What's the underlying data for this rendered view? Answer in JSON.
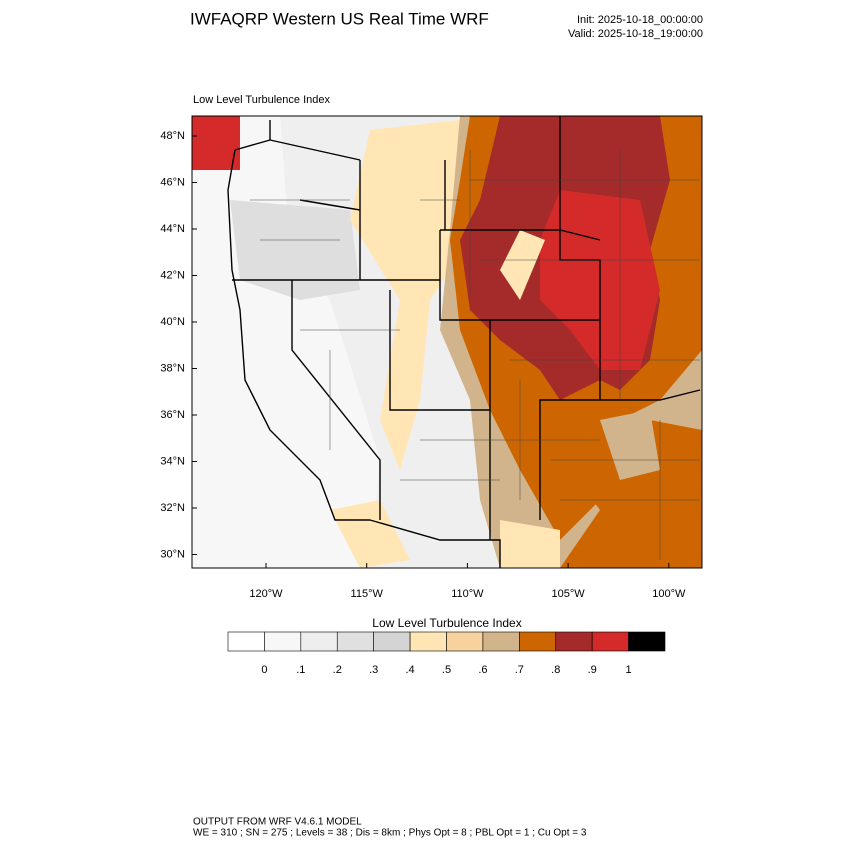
{
  "header": {
    "title": "IWFAQRP Western US Real Time WRF",
    "init": "Init: 2025-10-18_00:00:00",
    "valid": "Valid: 2025-10-18_19:00:00"
  },
  "map": {
    "label": "Low Level Turbulence Index",
    "lat_labels": [
      "48°N",
      "46°N",
      "44°N",
      "42°N",
      "40°N",
      "38°N",
      "36°N",
      "34°N",
      "32°N",
      "30°N"
    ],
    "lon_labels": [
      "120°W",
      "115°W",
      "110°W",
      "105°W",
      "100°W"
    ]
  },
  "colorbar": {
    "title": "Low Level Turbulence Index",
    "colors": [
      "#ffffff",
      "#f7f7f7",
      "#eeeeee",
      "#e0e0e0",
      "#d4d4d4",
      "#ffe6b4",
      "#f7d29e",
      "#d2b48c",
      "#cd6600",
      "#a52a2a",
      "#d42a2a",
      "#000000"
    ],
    "labels": [
      "0",
      ".1",
      ".2",
      ".3",
      ".4",
      ".5",
      ".6",
      ".7",
      ".8",
      ".9",
      "1"
    ]
  },
  "footer": {
    "line1": "OUTPUT FROM WRF V4.6.1 MODEL",
    "line2": "WE = 310 ; SN = 275 ; Levels = 38 ; Dis = 8km ; Phys Opt = 8 ; PBL Opt = 1 ; Cu Opt = 3"
  }
}
